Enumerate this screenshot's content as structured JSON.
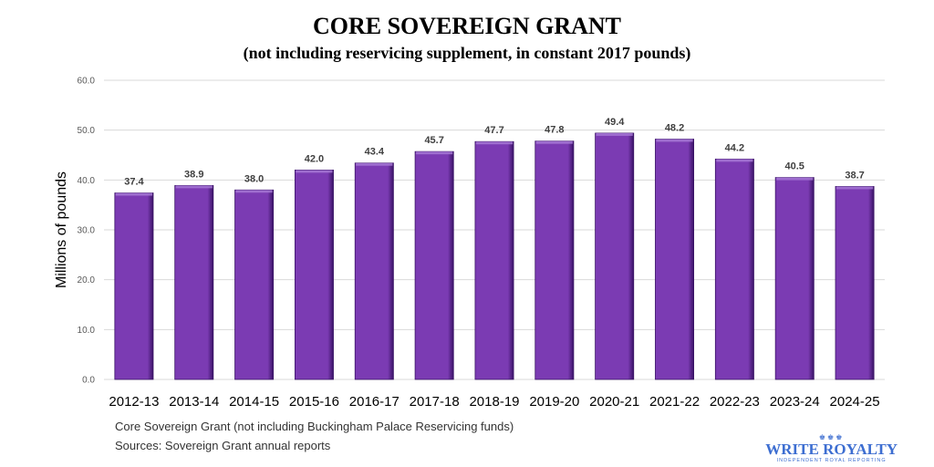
{
  "chart_data": {
    "type": "bar",
    "title": "CORE SOVEREIGN GRANT",
    "subtitle": "(not including reservicing supplement, in constant 2017 pounds)",
    "xlabel": "",
    "ylabel": "Millions of pounds",
    "ylim": [
      0,
      60
    ],
    "yticks": [
      "0.0",
      "10.0",
      "20.0",
      "30.0",
      "40.0",
      "50.0",
      "60.0"
    ],
    "grid": true,
    "categories": [
      "2012-13",
      "2013-14",
      "2014-15",
      "2015-16",
      "2016-17",
      "2017-18",
      "2018-19",
      "2019-20",
      "2020-21",
      "2021-22",
      "2022-23",
      "2023-24",
      "2024-25"
    ],
    "values": [
      37.4,
      38.9,
      38.0,
      42.0,
      43.4,
      45.7,
      47.7,
      47.8,
      49.4,
      48.2,
      44.2,
      40.5,
      38.7
    ],
    "value_labels": [
      "37.4",
      "38.9",
      "38.0",
      "42.0",
      "43.4",
      "45.7",
      "47.7",
      "47.8",
      "49.4",
      "48.2",
      "44.2",
      "40.5",
      "38.7"
    ],
    "bar_color": "#7b3bb3",
    "bar_edge_color": "#3a1366"
  },
  "footnotes": {
    "line1": "Core Sovereign Grant (not including Buckingham Palace Reservicing funds)",
    "line2": "Sources: Sovereign Grant annual reports"
  },
  "brand": {
    "name": "WRITE ROYALTY",
    "tagline": "INDEPENDENT ROYAL REPORTING",
    "icon": "crown-icon",
    "color": "#3d6ed1"
  }
}
